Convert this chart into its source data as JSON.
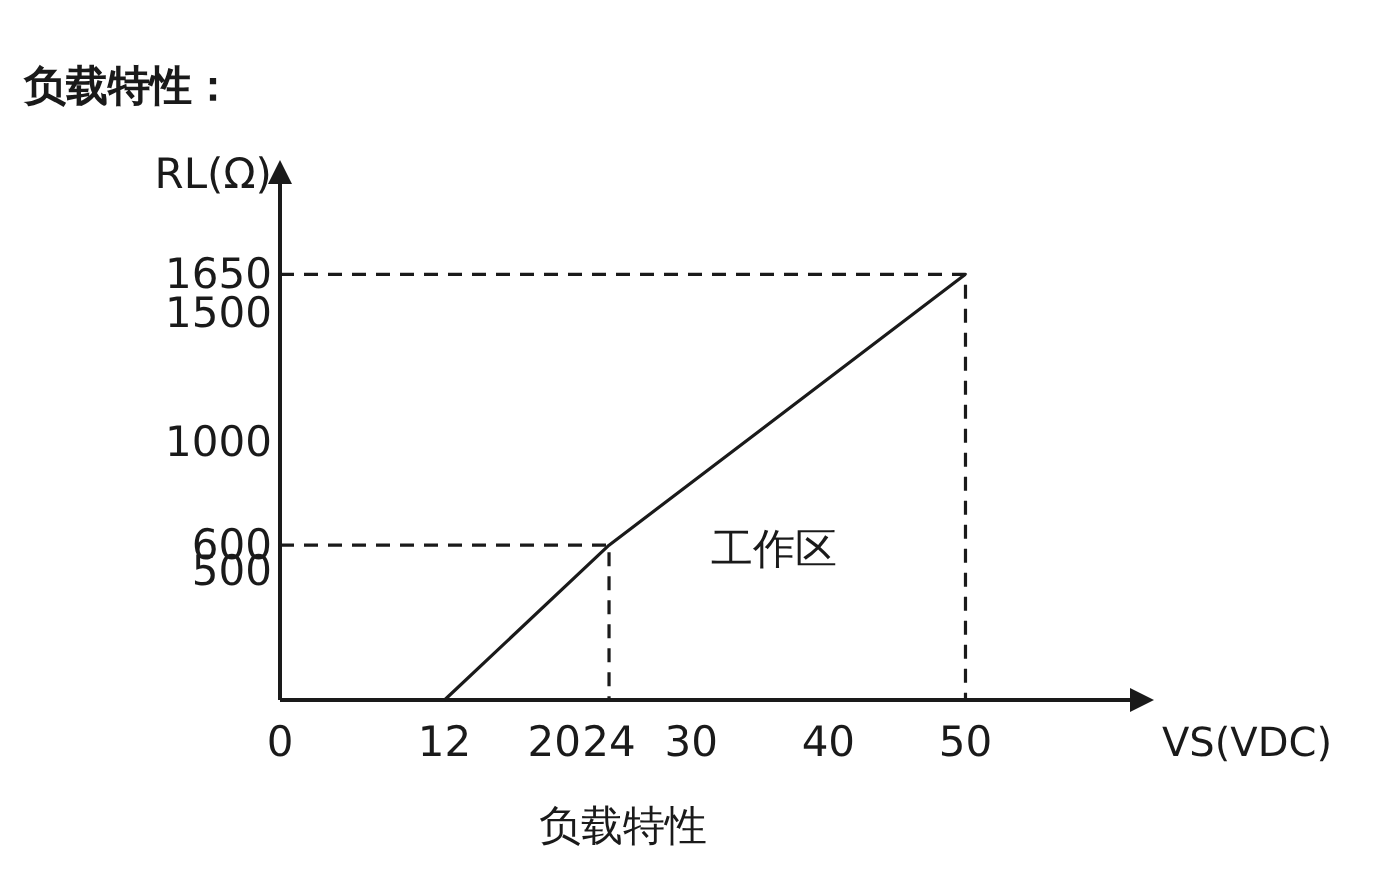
{
  "chart_data": {
    "type": "line",
    "title": "负载特性：",
    "xlabel": "VS(VDC)",
    "ylabel": "RL(Ω)",
    "annotations": [
      "工作区",
      "负载特性"
    ],
    "xlim": [
      0,
      62
    ],
    "ylim": [
      0,
      2000
    ],
    "xticks": [
      0,
      12,
      20,
      24,
      30,
      40,
      50
    ],
    "yticks": [
      500,
      600,
      1000,
      1500,
      1650
    ],
    "grid": false,
    "series": [
      {
        "color": "#1a1a1a",
        "x": [
          12,
          24,
          50
        ],
        "values": [
          0,
          600,
          1650
        ],
        "line_style": "solid"
      },
      {
        "color": "#1a1a1a",
        "x": [
          0,
          24,
          24
        ],
        "values": [
          600,
          600,
          0
        ],
        "line_style": "dashed"
      },
      {
        "color": "#1a1a1a",
        "x": [
          0,
          50,
          50
        ],
        "values": [
          1650,
          1650,
          0
        ],
        "line_style": "dashed"
      }
    ]
  }
}
